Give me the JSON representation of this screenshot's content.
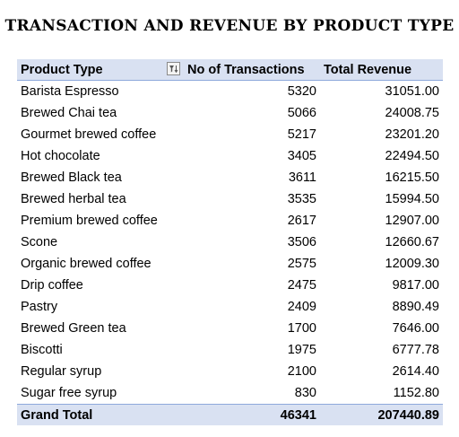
{
  "title": "TRANSACTION AND REVENUE BY PRODUCT TYPE",
  "table": {
    "headers": [
      "Product Type",
      "No of Transactions",
      "Total Revenue"
    ],
    "rows": [
      [
        "Barista Espresso",
        "5320",
        "31051.00"
      ],
      [
        "Brewed Chai tea",
        "5066",
        "24008.75"
      ],
      [
        "Gourmet brewed coffee",
        "5217",
        "23201.20"
      ],
      [
        "Hot chocolate",
        "3405",
        "22494.50"
      ],
      [
        "Brewed Black tea",
        "3611",
        "16215.50"
      ],
      [
        "Brewed herbal tea",
        "3535",
        "15994.50"
      ],
      [
        "Premium brewed coffee",
        "2617",
        "12907.00"
      ],
      [
        "Scone",
        "3506",
        "12660.67"
      ],
      [
        "Organic brewed coffee",
        "2575",
        "12009.30"
      ],
      [
        "Drip coffee",
        "2475",
        "9817.00"
      ],
      [
        "Pastry",
        "2409",
        "8890.49"
      ],
      [
        "Brewed Green tea",
        "1700",
        "7646.00"
      ],
      [
        "Biscotti",
        "1975",
        "6777.78"
      ],
      [
        "Regular syrup",
        "2100",
        "2614.40"
      ],
      [
        "Sugar free syrup",
        "830",
        "1152.80"
      ]
    ],
    "grand_total": [
      "Grand Total",
      "46341",
      "207440.89"
    ],
    "filter_icon": "filter-sort-icon",
    "colors": {
      "header_bg": "#d9e1f2",
      "border": "#8ea9db"
    }
  }
}
